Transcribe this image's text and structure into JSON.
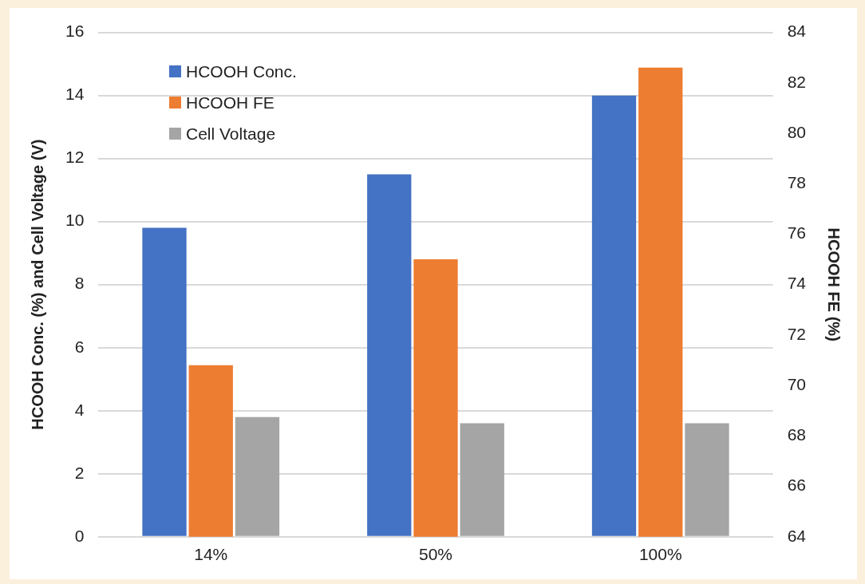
{
  "chart_data": {
    "type": "bar",
    "xlabel": null,
    "ylabel": "HCOOH Conc. (%) and Cell Voltage (V)",
    "y2label": "HCOOH FE (%)",
    "categories": [
      "14%",
      "50%",
      "100%"
    ],
    "series": [
      {
        "name": "HCOOH Conc.",
        "color": "#4472c4",
        "values": [
          9.8,
          11.5,
          14
        ]
      },
      {
        "name": "HCOOH FE",
        "color": "#ed7d31",
        "values": [
          70.8,
          75.0,
          82.6
        ],
        "axis": "y2"
      },
      {
        "name": "Cell Voltage",
        "color": "#a5a5a5",
        "values": [
          3.8,
          3.6,
          3.6
        ]
      }
    ],
    "ylim": [
      0,
      16
    ],
    "yticks": [
      0,
      2,
      4,
      6,
      8,
      10,
      12,
      14,
      16
    ],
    "y2lim": [
      64,
      84
    ],
    "y2ticks": [
      64,
      66,
      68,
      70,
      72,
      74,
      76,
      78,
      80,
      82,
      84
    ],
    "grid": "y",
    "legend": "top left"
  }
}
